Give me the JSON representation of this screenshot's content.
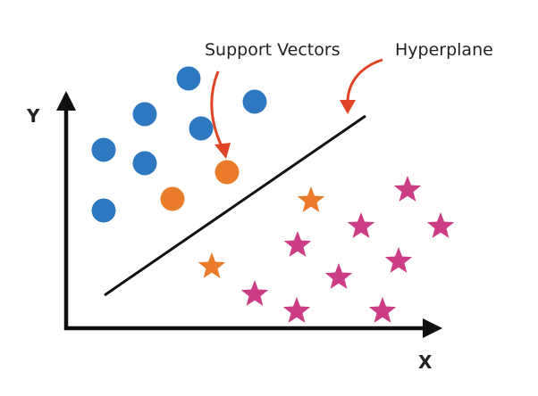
{
  "labels": {
    "support_vectors": "Support Vectors",
    "hyperplane": "Hyperplane",
    "x_axis": "X",
    "y_axis": "Y"
  },
  "colors": {
    "class_a": "#2e78c2",
    "class_b": "#cc3d86",
    "support_vector": "#ea7b2b",
    "annotation_arrow": "#e04426",
    "axis": "#111111",
    "hyperplane": "#111111"
  },
  "icons": {
    "class_a_marker": "circle",
    "class_b_marker": "star",
    "support_vector_marker_a": "circle",
    "support_vector_marker_b": "star"
  }
}
